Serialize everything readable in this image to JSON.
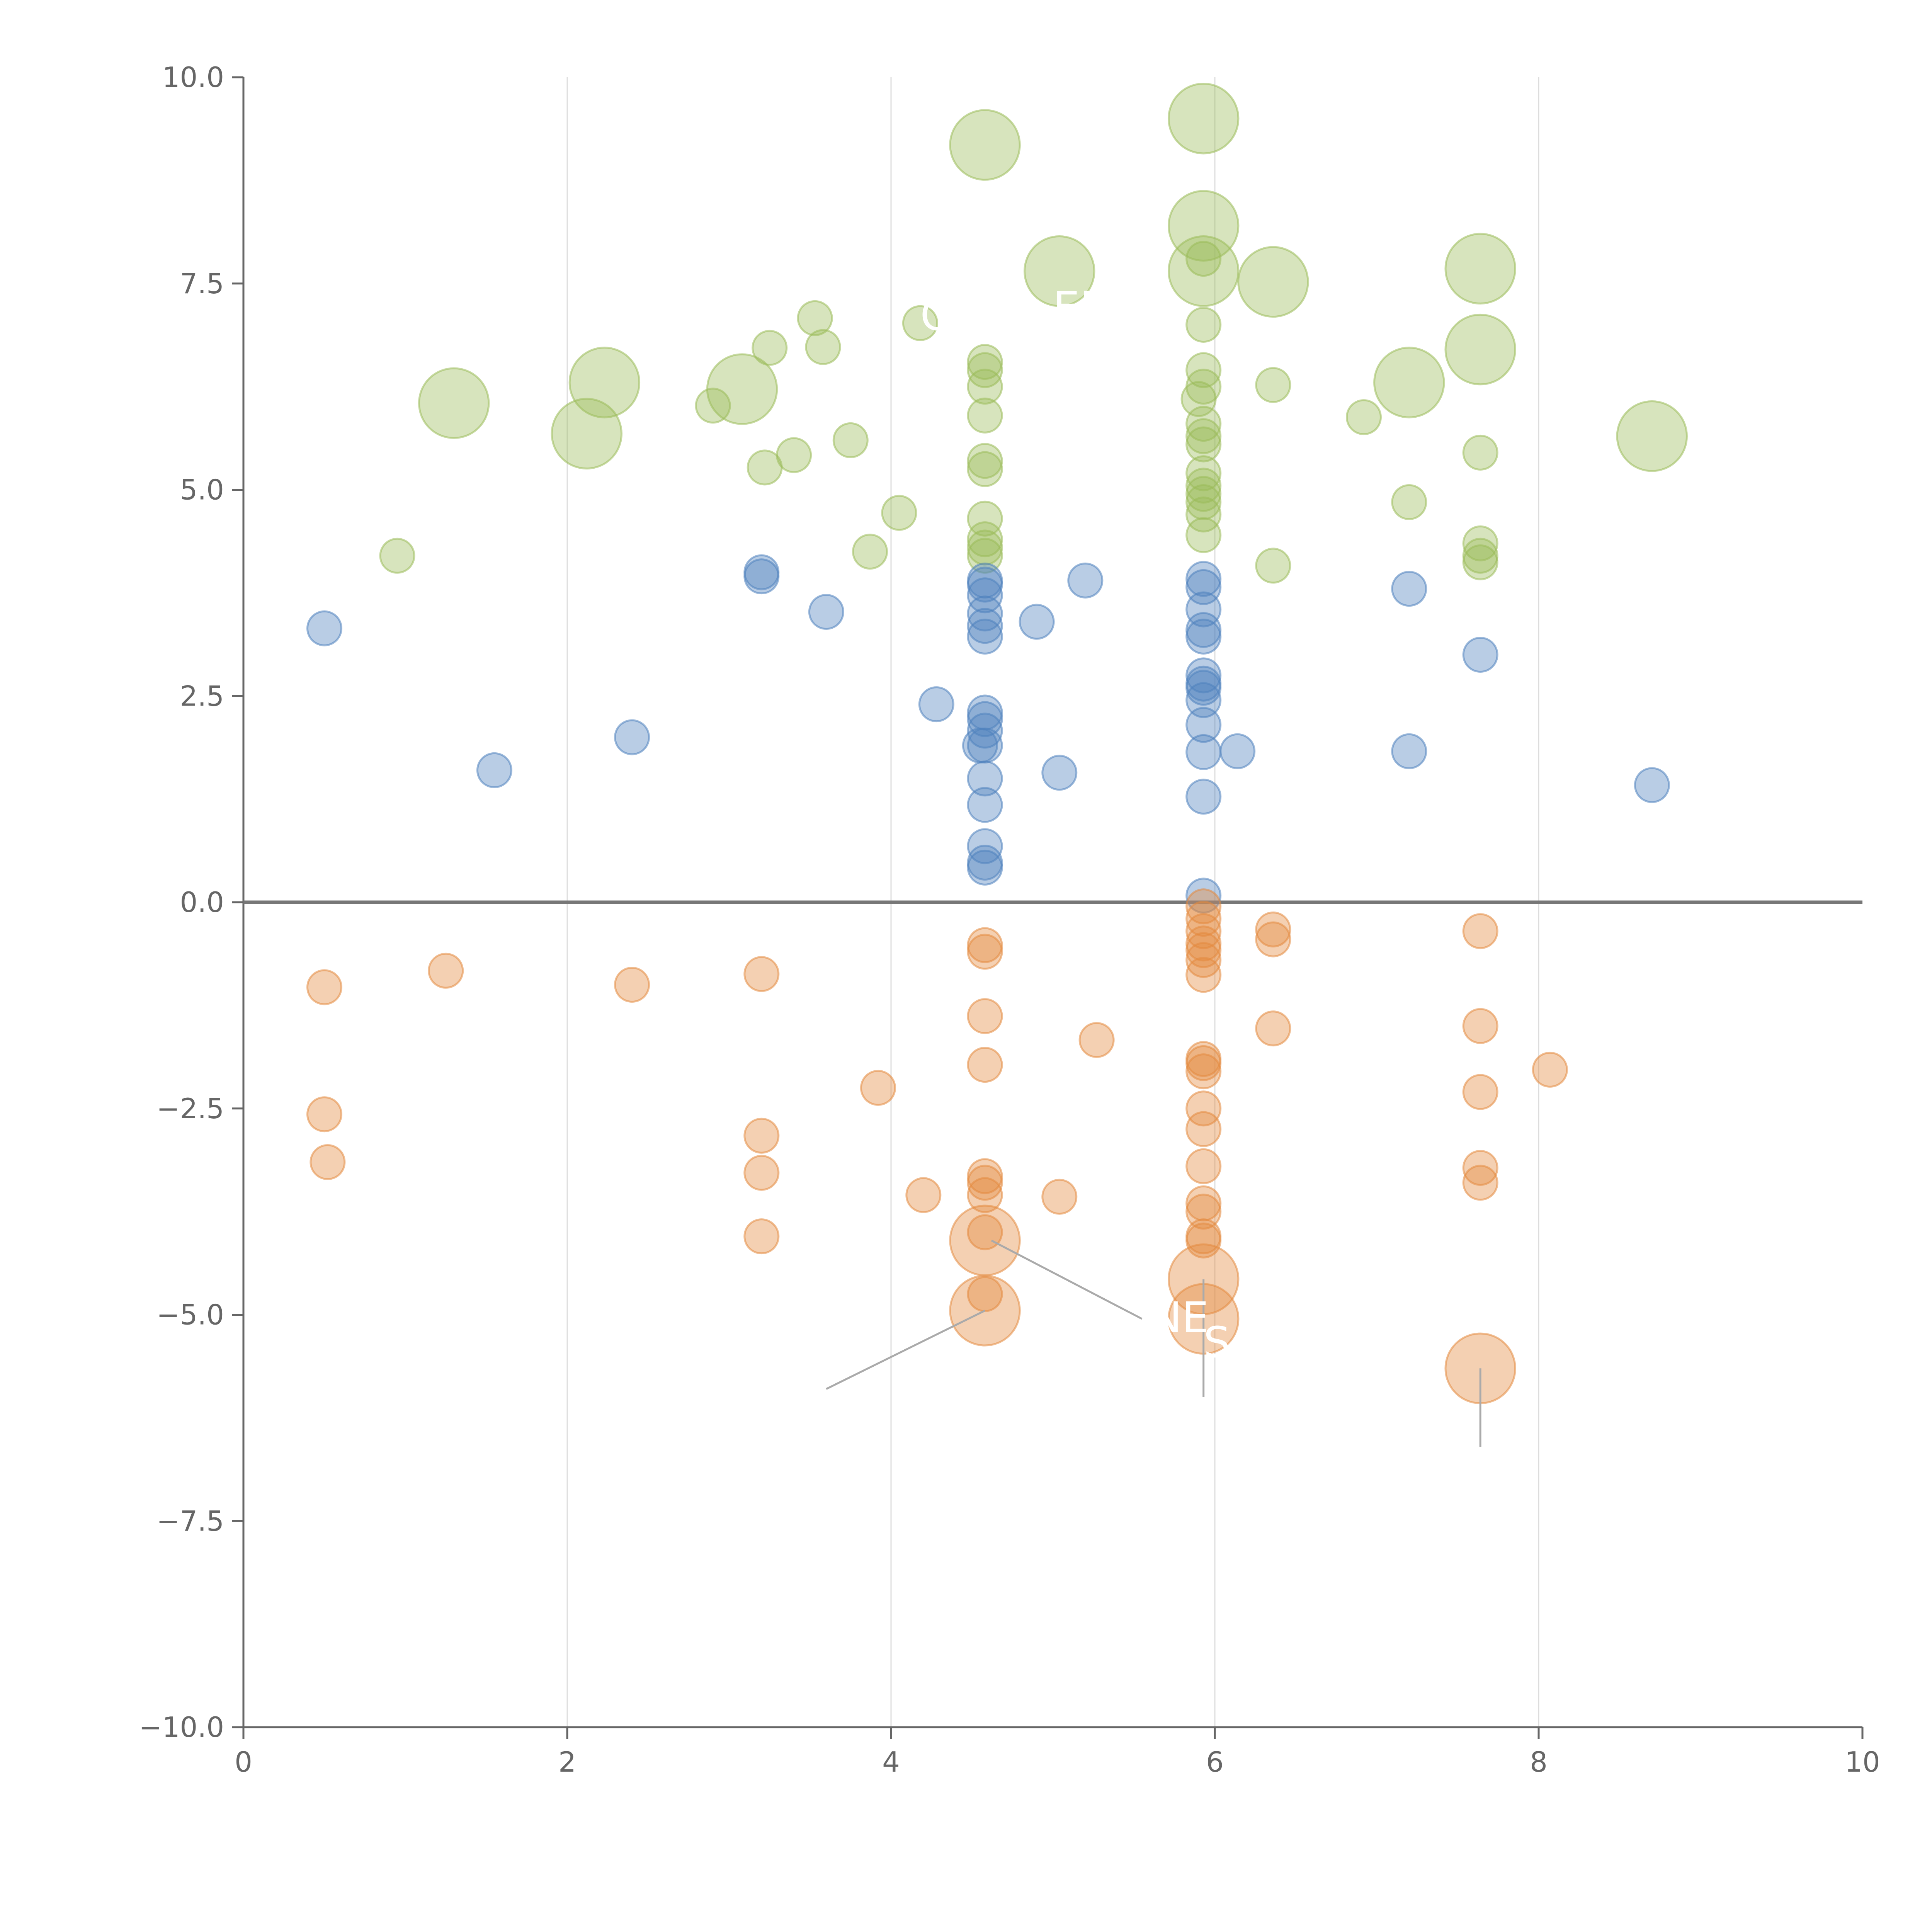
{
  "chart_data": {
    "type": "scatter",
    "title": "",
    "xlabel": "",
    "ylabel": "",
    "xlim": [
      0,
      10
    ],
    "ylim": [
      -10,
      10
    ],
    "x_ticks": [
      0,
      2,
      4,
      6,
      8,
      10
    ],
    "y_ticks": [
      -10,
      -7.5,
      -5,
      -2.5,
      0,
      2.5,
      5,
      7.5,
      10
    ],
    "x_tick_labels": [
      "0",
      "2",
      "4",
      "6",
      "8",
      "10"
    ],
    "y_tick_labels": [
      "−10.0",
      "−7.5",
      "−5.0",
      "−2.5",
      "0.0",
      "2.5",
      "5.0",
      "7.5",
      "10.0"
    ],
    "grid": "vertical",
    "zero_line": true,
    "colors": {
      "green": "#9bbb59",
      "blue": "#4f81bd",
      "orange": "#e38a3f",
      "axis": "#666666",
      "grid": "#dddddd",
      "zero": "#777777",
      "callout": "#aaaaaa"
    },
    "series": [
      {
        "name": "green",
        "color": "#9bbb59",
        "points": [
          [
            0.95,
            4.2,
            1
          ],
          [
            1.3,
            6.05,
            2.2
          ],
          [
            2.12,
            5.68,
            2.2
          ],
          [
            2.23,
            6.3,
            2.2
          ],
          [
            2.9,
            6.02,
            1
          ],
          [
            3.08,
            6.22,
            2.2
          ],
          [
            3.22,
            5.27,
            1
          ],
          [
            3.25,
            6.72,
            1
          ],
          [
            3.4,
            5.42,
            1
          ],
          [
            3.53,
            7.08,
            1
          ],
          [
            3.58,
            6.73,
            1
          ],
          [
            3.75,
            5.6,
            1
          ],
          [
            3.87,
            4.25,
            1
          ],
          [
            4.05,
            4.72,
            1
          ],
          [
            4.18,
            7.02,
            1
          ],
          [
            4.58,
            9.18,
            2.2
          ],
          [
            4.58,
            6.55,
            1
          ],
          [
            4.58,
            6.45,
            1
          ],
          [
            4.58,
            6.25,
            1
          ],
          [
            4.58,
            5.9,
            1
          ],
          [
            4.58,
            5.35,
            1
          ],
          [
            4.58,
            5.25,
            1
          ],
          [
            4.58,
            4.65,
            1
          ],
          [
            4.58,
            4.4,
            1
          ],
          [
            4.58,
            4.3,
            1
          ],
          [
            4.58,
            4.2,
            1
          ],
          [
            5.04,
            7.65,
            2.2
          ],
          [
            5.93,
            9.5,
            2.2
          ],
          [
            5.93,
            8.2,
            2.2
          ],
          [
            5.93,
            7.65,
            2.2
          ],
          [
            5.93,
            7.8,
            1
          ],
          [
            5.93,
            7.0,
            1
          ],
          [
            5.93,
            6.45,
            1
          ],
          [
            5.93,
            6.25,
            1
          ],
          [
            5.9,
            6.1,
            1
          ],
          [
            5.93,
            5.8,
            1
          ],
          [
            5.93,
            5.65,
            1
          ],
          [
            5.93,
            5.55,
            1
          ],
          [
            5.93,
            5.2,
            1
          ],
          [
            5.93,
            5.05,
            1
          ],
          [
            5.93,
            4.95,
            1
          ],
          [
            5.93,
            4.85,
            1
          ],
          [
            5.93,
            4.7,
            1
          ],
          [
            5.93,
            4.45,
            1
          ],
          [
            6.36,
            7.52,
            2.2
          ],
          [
            6.36,
            6.27,
            1
          ],
          [
            6.36,
            4.08,
            1
          ],
          [
            6.92,
            5.88,
            1
          ],
          [
            7.2,
            6.3,
            2.2
          ],
          [
            7.2,
            4.85,
            1
          ],
          [
            7.64,
            7.68,
            2.2
          ],
          [
            7.64,
            6.7,
            2.2
          ],
          [
            7.64,
            5.45,
            1
          ],
          [
            7.64,
            4.35,
            1
          ],
          [
            7.64,
            4.2,
            1
          ],
          [
            7.64,
            4.12,
            1
          ],
          [
            8.7,
            5.65,
            2.2
          ]
        ]
      },
      {
        "name": "blue",
        "color": "#4f81bd",
        "points": [
          [
            0.5,
            3.32,
            1
          ],
          [
            1.55,
            1.6,
            1
          ],
          [
            2.4,
            2.0,
            1
          ],
          [
            3.2,
            4.0,
            1
          ],
          [
            3.2,
            3.95,
            1
          ],
          [
            3.6,
            3.52,
            1
          ],
          [
            4.28,
            2.4,
            1
          ],
          [
            4.55,
            1.9,
            1
          ],
          [
            4.58,
            3.9,
            1
          ],
          [
            4.58,
            3.85,
            1
          ],
          [
            4.58,
            3.72,
            1
          ],
          [
            4.58,
            3.5,
            1
          ],
          [
            4.58,
            3.35,
            1
          ],
          [
            4.58,
            3.22,
            1
          ],
          [
            4.58,
            2.3,
            1
          ],
          [
            4.58,
            2.22,
            1
          ],
          [
            4.58,
            2.08,
            1
          ],
          [
            4.58,
            1.9,
            1
          ],
          [
            4.58,
            1.5,
            1
          ],
          [
            4.58,
            1.18,
            1
          ],
          [
            4.58,
            0.68,
            1
          ],
          [
            4.58,
            0.48,
            1
          ],
          [
            4.58,
            0.42,
            1
          ],
          [
            4.9,
            3.4,
            1
          ],
          [
            5.04,
            1.57,
            1
          ],
          [
            5.2,
            3.9,
            1
          ],
          [
            5.93,
            3.92,
            1
          ],
          [
            5.93,
            3.82,
            1
          ],
          [
            5.93,
            3.55,
            1
          ],
          [
            5.93,
            3.3,
            1
          ],
          [
            5.93,
            3.22,
            1
          ],
          [
            5.93,
            2.75,
            1
          ],
          [
            5.93,
            2.65,
            1
          ],
          [
            5.93,
            2.6,
            1
          ],
          [
            5.93,
            2.45,
            1
          ],
          [
            5.93,
            2.15,
            1
          ],
          [
            5.93,
            1.82,
            1
          ],
          [
            5.93,
            1.28,
            1
          ],
          [
            5.93,
            0.08,
            1
          ],
          [
            6.14,
            1.83,
            1
          ],
          [
            7.2,
            3.8,
            1
          ],
          [
            7.2,
            1.83,
            1
          ],
          [
            7.64,
            3.0,
            1
          ],
          [
            8.7,
            1.42,
            1
          ]
        ]
      },
      {
        "name": "orange",
        "color": "#e38a3f",
        "points": [
          [
            0.5,
            -1.03,
            1
          ],
          [
            0.5,
            -2.57,
            1
          ],
          [
            0.52,
            -3.15,
            1
          ],
          [
            1.25,
            -0.83,
            1
          ],
          [
            2.4,
            -1.0,
            1
          ],
          [
            3.2,
            -0.87,
            1
          ],
          [
            3.2,
            -2.83,
            1
          ],
          [
            3.2,
            -3.28,
            1
          ],
          [
            3.2,
            -4.05,
            1
          ],
          [
            3.92,
            -2.25,
            1
          ],
          [
            4.2,
            -3.55,
            1
          ],
          [
            4.58,
            -0.52,
            1
          ],
          [
            4.58,
            -0.6,
            1
          ],
          [
            4.58,
            -1.38,
            1
          ],
          [
            4.58,
            -1.97,
            1
          ],
          [
            4.58,
            -3.32,
            1
          ],
          [
            4.58,
            -3.4,
            1
          ],
          [
            4.58,
            -3.55,
            1
          ],
          [
            4.58,
            -4.0,
            1
          ],
          [
            4.58,
            -4.1,
            2.2
          ],
          [
            4.58,
            -4.75,
            1
          ],
          [
            4.58,
            -4.95,
            2.2
          ],
          [
            5.04,
            -3.57,
            1
          ],
          [
            5.27,
            -1.67,
            1
          ],
          [
            5.93,
            -0.05,
            1
          ],
          [
            5.93,
            -0.2,
            1
          ],
          [
            5.93,
            -0.35,
            1
          ],
          [
            5.93,
            -0.5,
            1
          ],
          [
            5.93,
            -0.58,
            1
          ],
          [
            5.93,
            -0.7,
            1
          ],
          [
            5.93,
            -0.88,
            1
          ],
          [
            5.93,
            -1.9,
            1
          ],
          [
            5.93,
            -1.95,
            1
          ],
          [
            5.93,
            -2.05,
            1
          ],
          [
            5.93,
            -2.5,
            1
          ],
          [
            5.93,
            -2.75,
            1
          ],
          [
            5.93,
            -3.2,
            1
          ],
          [
            5.93,
            -3.65,
            1
          ],
          [
            5.93,
            -3.75,
            1
          ],
          [
            5.93,
            -4.05,
            1
          ],
          [
            5.93,
            -4.1,
            1
          ],
          [
            5.93,
            -4.57,
            2.2
          ],
          [
            5.93,
            -5.05,
            2.2
          ],
          [
            6.36,
            -0.33,
            1
          ],
          [
            6.36,
            -0.45,
            1
          ],
          [
            6.36,
            -1.53,
            1
          ],
          [
            7.64,
            -0.35,
            1
          ],
          [
            7.64,
            -1.5,
            1
          ],
          [
            7.64,
            -2.3,
            1
          ],
          [
            7.64,
            -3.22,
            1
          ],
          [
            7.64,
            -3.4,
            1
          ],
          [
            7.64,
            -5.65,
            2.2
          ],
          [
            8.07,
            -2.03,
            1
          ]
        ]
      }
    ],
    "callout_lines": [
      {
        "from": [
          4.62,
          -4.1
        ],
        "to": [
          5.55,
          -5.05
        ]
      },
      {
        "from": [
          4.58,
          -4.95
        ],
        "to": [
          3.6,
          -5.9
        ]
      },
      {
        "from": [
          5.93,
          -4.57
        ],
        "to": [
          5.93,
          -6.0
        ]
      },
      {
        "from": [
          7.64,
          -5.65
        ],
        "to": [
          7.64,
          -6.6
        ]
      }
    ],
    "annotations": [
      {
        "text": "C",
        "x": 4.18,
        "y": 7.1
      },
      {
        "text": "ER",
        "x": 5.0,
        "y": 7.2
      },
      {
        "text": "NE",
        "x": 5.6,
        "y": -5.05
      },
      {
        "text": "S",
        "x": 5.93,
        "y": -5.35
      }
    ]
  }
}
